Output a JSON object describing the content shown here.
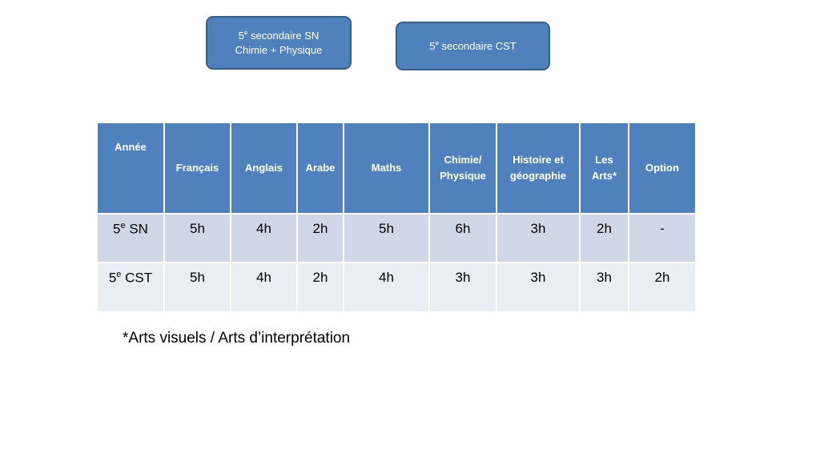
{
  "boxes": [
    {
      "line1_num": "5",
      "line1_sup": "e",
      "line1_rest": " secondaire SN",
      "line2": "Chimie + Physique"
    },
    {
      "line1_num": "5",
      "line1_sup": "e",
      "line1_rest": " secondaire CST"
    }
  ],
  "table": {
    "headers": [
      "Année",
      "Français",
      "Anglais",
      "Arabe",
      "Maths",
      "Chimie/\nPhysique",
      "Histoire et\ngéographie",
      "Les\nArts*",
      "Option"
    ],
    "rows": [
      {
        "label_num": "5",
        "label_sup": "e",
        "label_rest": " SN",
        "cells": [
          "5h",
          "4h",
          "2h",
          "5h",
          "6h",
          "3h",
          "2h",
          "-"
        ]
      },
      {
        "label_num": "5",
        "label_sup": "e",
        "label_rest": " CST",
        "cells": [
          "5h",
          "4h",
          "2h",
          "4h",
          "3h",
          "3h",
          "3h",
          "2h"
        ]
      }
    ]
  },
  "footnote": "*Arts visuels / Arts d’interprétation"
}
